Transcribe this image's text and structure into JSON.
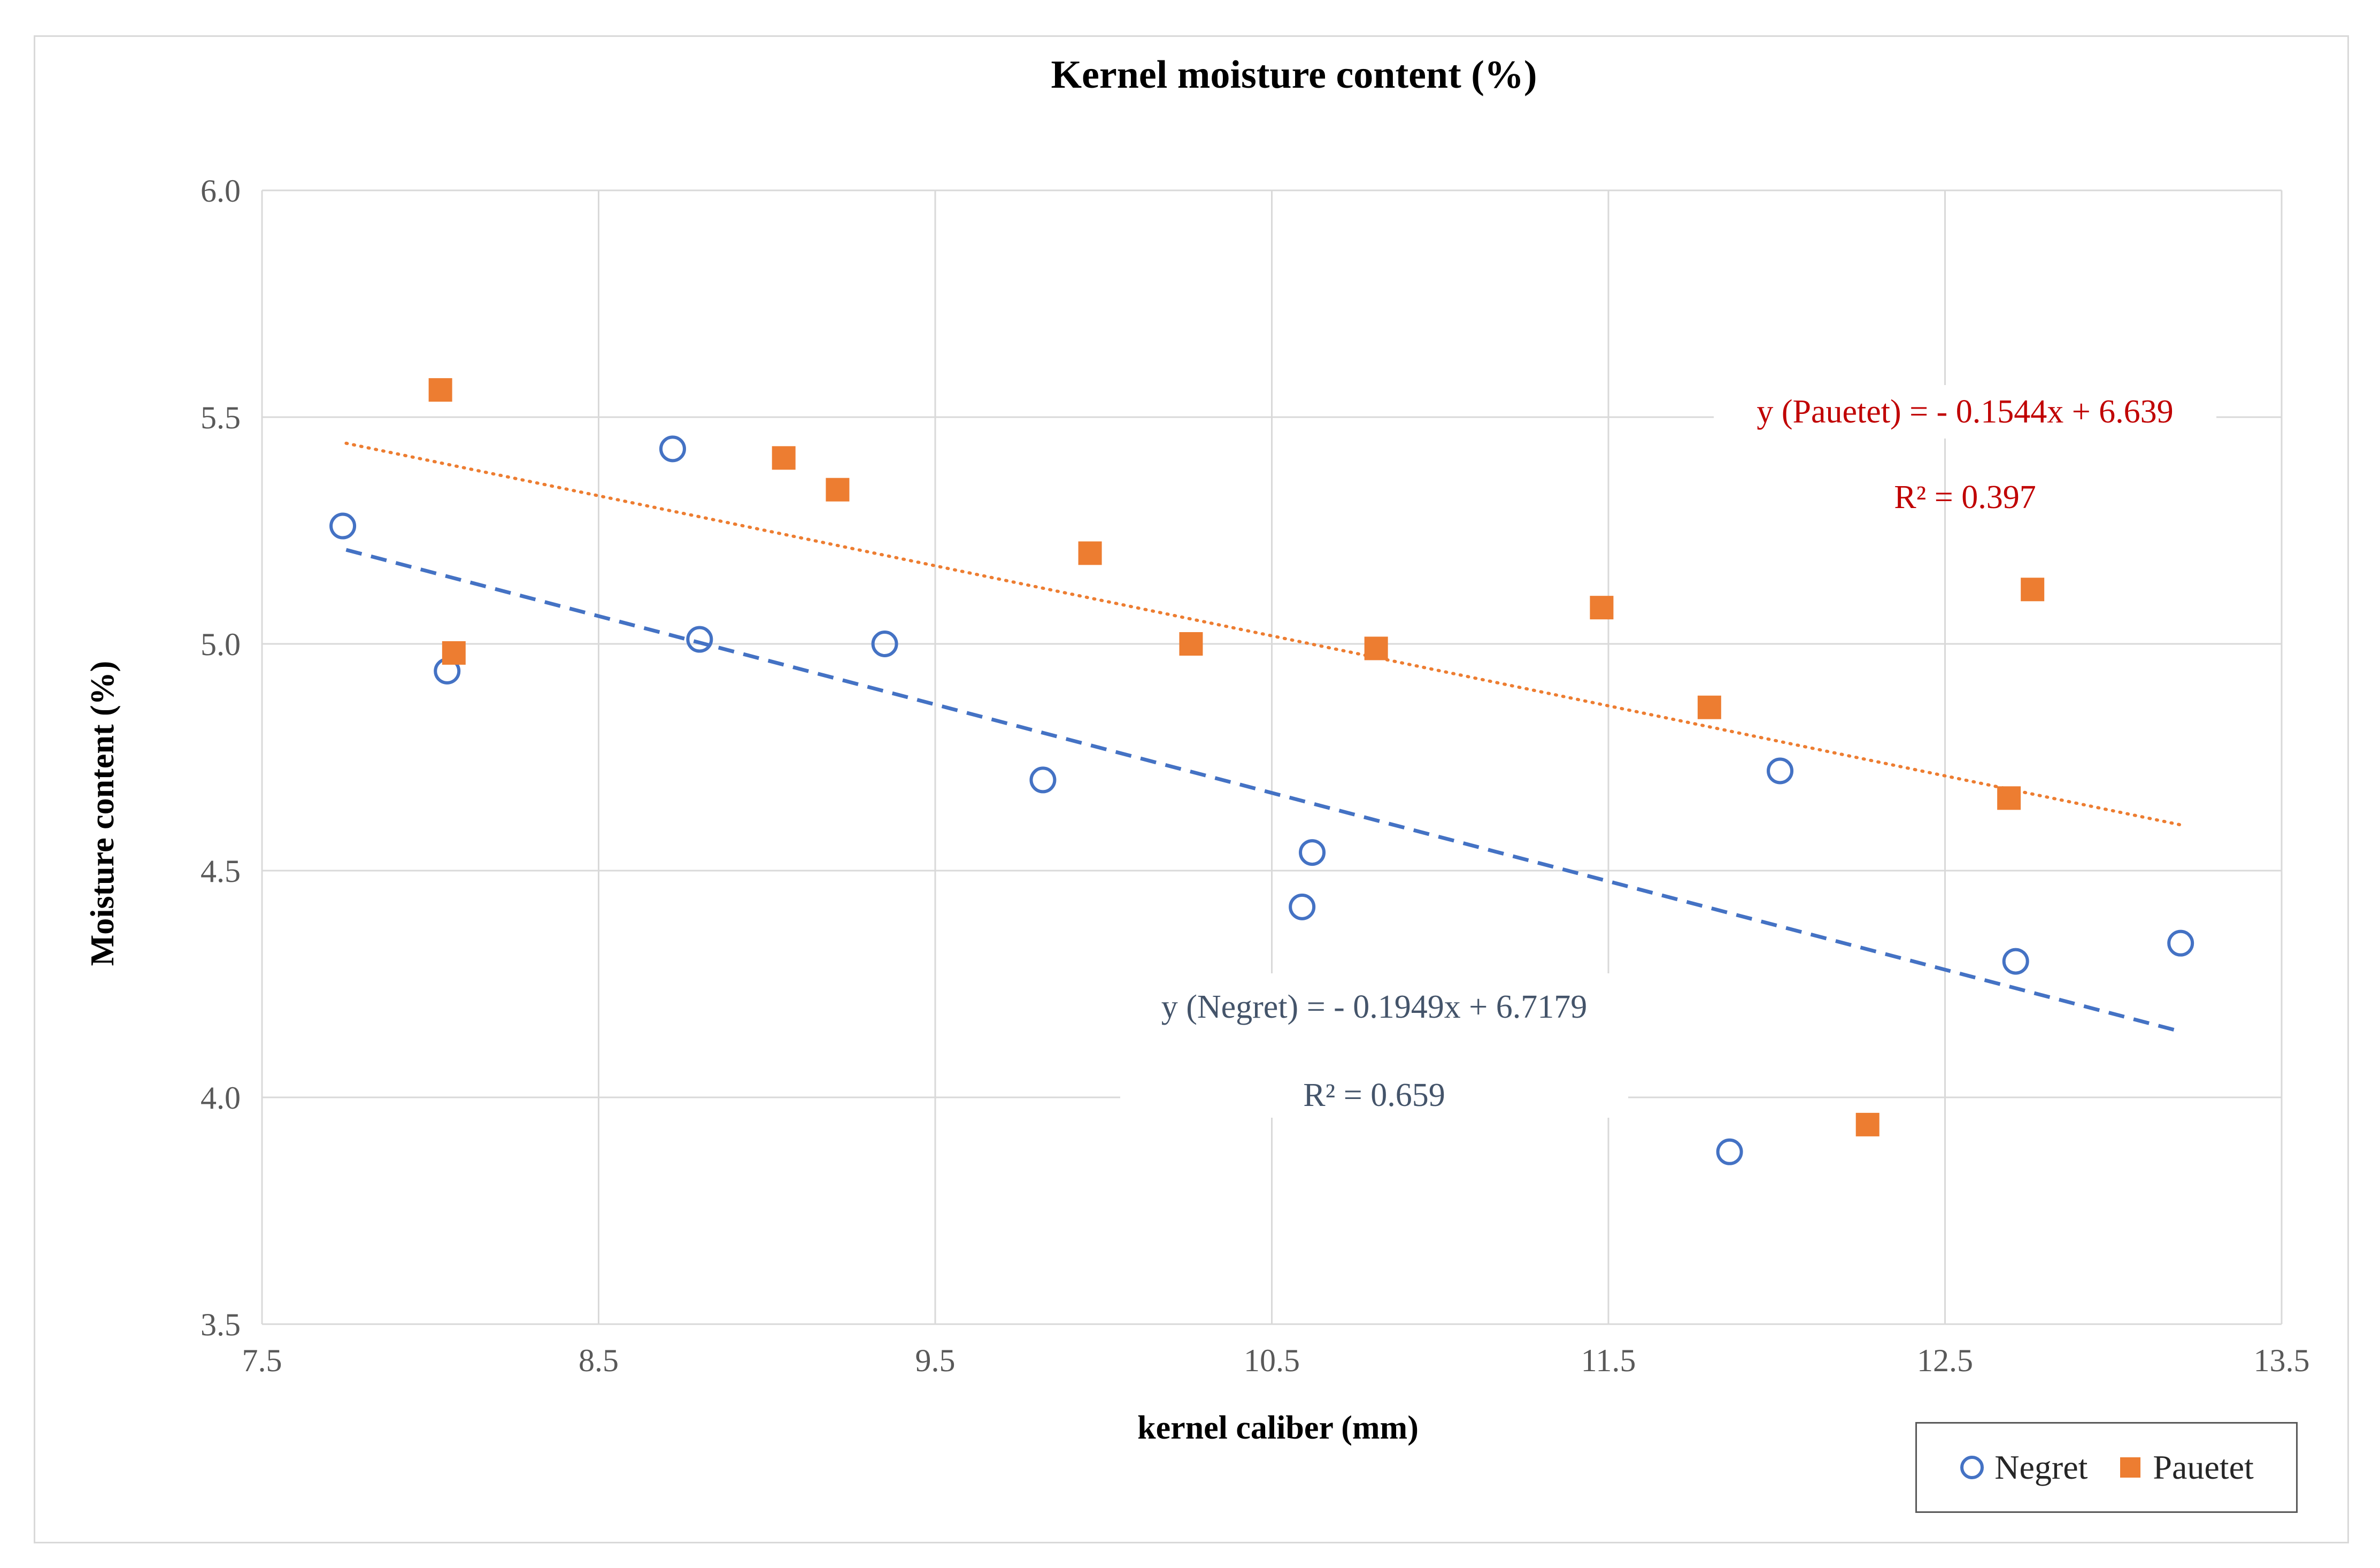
{
  "chart_data": {
    "type": "scatter",
    "title": "Kernel moisture content (%)",
    "xlabel": "kernel caliber (mm)",
    "ylabel": "Moisture content (%)",
    "xlim": [
      7.5,
      13.5
    ],
    "ylim": [
      3.5,
      6.0
    ],
    "xticks": [
      "7.5",
      "8.5",
      "9.5",
      "10.5",
      "11.5",
      "12.5",
      "13.5"
    ],
    "yticks": [
      "3.5",
      "4.0",
      "4.5",
      "5.0",
      "5.5",
      "6.0"
    ],
    "grid": true,
    "legend_position": "bottom-right",
    "series": [
      {
        "name": "Negret",
        "marker": "circle-open",
        "color": "#4472c4",
        "x": [
          7.74,
          8.05,
          8.72,
          8.8,
          9.35,
          9.82,
          10.59,
          10.62,
          11.86,
          12.01,
          12.71,
          13.2
        ],
        "y": [
          5.26,
          4.94,
          5.43,
          5.01,
          5.0,
          4.7,
          4.42,
          4.54,
          3.88,
          4.72,
          4.3,
          4.34
        ],
        "trendline": {
          "slope": -0.1949,
          "intercept": 6.7179,
          "x_range": [
            7.75,
            13.2
          ],
          "style": "dashed",
          "color": "#4472c4",
          "equation": "y (Negret) = - 0.1949x + 6.7179",
          "r2": "R² = 0.659"
        }
      },
      {
        "name": "Pauetet",
        "marker": "square-filled",
        "color": "#ed7d31",
        "x": [
          8.03,
          8.07,
          9.05,
          9.21,
          9.96,
          10.26,
          10.81,
          11.48,
          11.8,
          12.27,
          12.69,
          12.76
        ],
        "y": [
          5.56,
          4.98,
          5.41,
          5.34,
          5.2,
          5.0,
          4.99,
          5.08,
          4.86,
          3.94,
          4.66,
          5.12
        ],
        "trendline": {
          "slope": -0.1544,
          "intercept": 6.639,
          "x_range": [
            7.75,
            13.2
          ],
          "style": "dotted",
          "color": "#ed7d31",
          "equation": "y (Pauetet) = - 0.1544x + 6.639",
          "r2": "R² = 0.397"
        }
      }
    ]
  },
  "colors": {
    "grid": "#d9d9d9",
    "axis_text": "#595959",
    "title_text": "#000000",
    "pauetet_annotation": "#c00000",
    "negret_annotation": "#44546a"
  }
}
